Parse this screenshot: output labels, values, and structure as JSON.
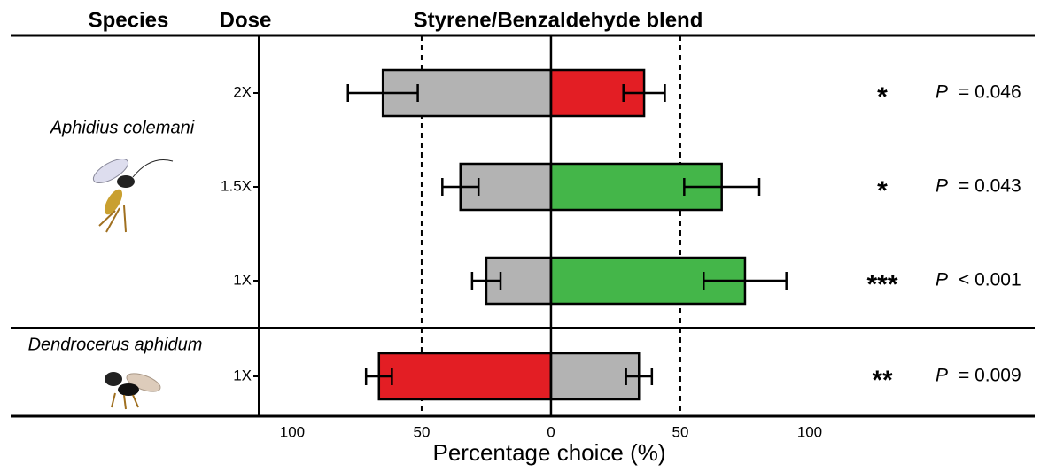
{
  "chart_data": {
    "type": "diverging-bar",
    "title": "Styrene/Benzaldehyde blend",
    "headers": [
      "Species",
      "Dose"
    ],
    "xlabel": "Percentage choice (%)",
    "groups": [
      {
        "label": "Aphidius colemani",
        "rows": 3
      },
      {
        "label": "Dendrocerus aphidum",
        "rows": 1
      }
    ],
    "categories": [
      "2X",
      "1.5X",
      "1X",
      "1X"
    ],
    "series": [
      {
        "values": [
          -65,
          -35,
          -25,
          -66.5
        ],
        "errors": [
          13.5,
          7,
          5.5,
          5
        ],
        "colors": [
          "#b3b3b3",
          "#b3b3b3",
          "#b3b3b3",
          "#e31e24"
        ]
      },
      {
        "values": [
          36,
          66,
          75,
          34
        ],
        "errors": [
          8,
          14.5,
          16,
          5
        ],
        "colors": [
          "#e31e24",
          "#44b649",
          "#44b649",
          "#b3b3b3"
        ]
      }
    ],
    "annotations": [
      {
        "stars": "*",
        "p": "P",
        "test": "= 0.046"
      },
      {
        "stars": "*",
        "p": "P",
        "test": "= 0.043"
      },
      {
        "stars": "***",
        "p": "P",
        "test": "< 0.001"
      },
      {
        "stars": "**",
        "p": "P",
        "test": "= 0.009"
      }
    ],
    "xlim": [
      -113,
      187
    ],
    "xticks": [
      {
        "value": -100,
        "label": "100"
      },
      {
        "value": -50,
        "label": "50"
      },
      0,
      50,
      100
    ],
    "reference_lines": [
      -50,
      50
    ]
  }
}
